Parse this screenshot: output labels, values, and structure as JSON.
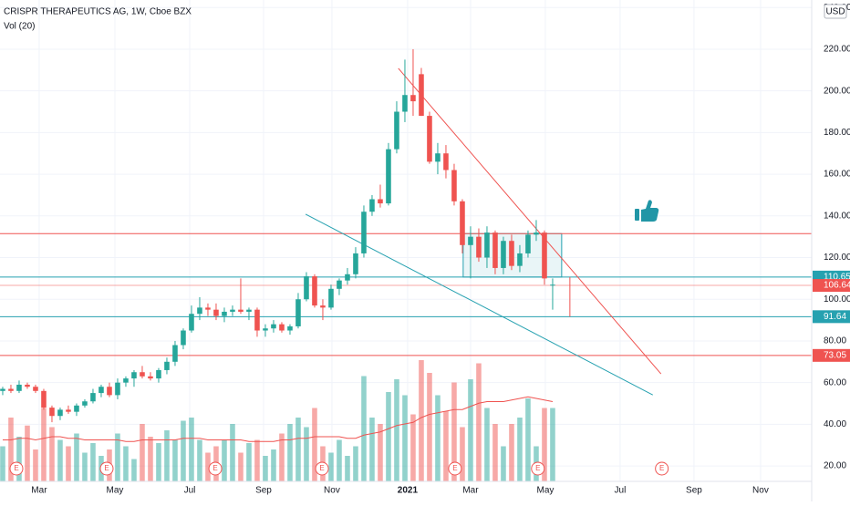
{
  "chart_data": {
    "type": "candlestick",
    "title": "CRISPR THERAPEUTICS AG, 1W, Cboe BZX",
    "subtitle": "Vol (20)",
    "currency": "USD",
    "categories": [
      null,
      null,
      null,
      null,
      null,
      null,
      null,
      null,
      null,
      null,
      null,
      null,
      null,
      null,
      null,
      null,
      null,
      null,
      null,
      null,
      null,
      null,
      null,
      null,
      null,
      null,
      null,
      null,
      null,
      null,
      null,
      null,
      null,
      null,
      null,
      null,
      null,
      null,
      null,
      null,
      null,
      null,
      null,
      null,
      null,
      null,
      null,
      null,
      null,
      null,
      null,
      null,
      null,
      null,
      null,
      null,
      null,
      null,
      null,
      null,
      null,
      null,
      null,
      null,
      null,
      null,
      null,
      null
    ],
    "open": [
      56,
      57,
      56,
      59,
      58,
      56,
      48,
      44,
      47,
      46,
      49,
      51,
      55,
      58,
      54,
      60,
      62,
      65,
      63,
      62,
      66,
      70,
      78,
      85,
      93,
      96,
      95,
      92,
      94,
      95,
      94,
      95,
      85,
      86,
      88,
      85,
      87,
      100,
      111,
      97,
      96,
      105,
      109,
      112,
      122,
      142,
      148,
      146,
      172,
      190,
      198,
      208,
      188,
      166,
      170,
      162,
      147,
      126,
      130,
      120,
      132,
      115,
      128,
      116,
      122,
      131,
      132,
      107
    ],
    "high": [
      58,
      59,
      61,
      60,
      59,
      57,
      49,
      48,
      49,
      50,
      52,
      57,
      59,
      60,
      62,
      63,
      66,
      68,
      65,
      67,
      72,
      80,
      86,
      97,
      101,
      98,
      98,
      96,
      97,
      110,
      96,
      96,
      88,
      90,
      89,
      88,
      103,
      113,
      112,
      100,
      107,
      110,
      115,
      125,
      145,
      150,
      155,
      175,
      195,
      215,
      220,
      211,
      190,
      175,
      174,
      165,
      148,
      135,
      134,
      135,
      133,
      130,
      131,
      126,
      133,
      138,
      133,
      110
    ],
    "low": [
      54,
      55,
      55,
      57,
      55,
      47,
      41,
      42,
      45,
      44,
      48,
      50,
      53,
      53,
      52,
      58,
      58,
      62,
      61,
      60,
      64,
      68,
      76,
      84,
      90,
      92,
      90,
      89,
      92,
      93,
      90,
      82,
      82,
      84,
      84,
      83,
      86,
      99,
      96,
      90,
      95,
      102,
      107,
      110,
      120,
      140,
      144,
      145,
      170,
      185,
      188,
      188,
      165,
      160,
      158,
      145,
      122,
      110,
      118,
      115,
      112,
      112,
      114,
      113,
      120,
      128,
      107,
      95
    ],
    "close": [
      57,
      56,
      59,
      58,
      56,
      48,
      44,
      47,
      46,
      49,
      51,
      55,
      58,
      54,
      60,
      62,
      65,
      63,
      62,
      66,
      70,
      78,
      85,
      93,
      96,
      95,
      92,
      94,
      95,
      94,
      95,
      85,
      86,
      88,
      85,
      87,
      100,
      111,
      97,
      96,
      105,
      109,
      112,
      122,
      142,
      148,
      146,
      172,
      190,
      198,
      195,
      188,
      166,
      170,
      162,
      147,
      126,
      130,
      120,
      132,
      115,
      128,
      116,
      122,
      131,
      132,
      110,
      107
    ],
    "volume": [
      2.2,
      4.0,
      2.8,
      3.5,
      2.0,
      4.6,
      3.4,
      2.6,
      2.2,
      3.0,
      1.8,
      2.4,
      1.6,
      2.0,
      3.0,
      2.2,
      1.4,
      3.6,
      2.8,
      2.4,
      3.2,
      2.6,
      3.8,
      4.0,
      2.6,
      1.8,
      2.2,
      2.6,
      3.6,
      1.8,
      2.4,
      2.6,
      1.6,
      2.0,
      3.0,
      3.6,
      4.0,
      3.4,
      4.6,
      2.2,
      1.8,
      2.6,
      1.6,
      2.2,
      6.6,
      4.0,
      3.6,
      5.6,
      6.4,
      5.4,
      4.2,
      7.6,
      6.8,
      5.4,
      4.4,
      6.2,
      3.4,
      6.4,
      7.4,
      4.6,
      3.6,
      2.2,
      3.6,
      4.0,
      5.2,
      2.2,
      4.6,
      4.6
    ],
    "volume_ma": [
      2.6,
      2.6,
      2.7,
      2.7,
      2.6,
      2.7,
      2.8,
      2.8,
      2.7,
      2.7,
      2.6,
      2.6,
      2.6,
      2.6,
      2.6,
      2.5,
      2.5,
      2.6,
      2.6,
      2.6,
      2.6,
      2.6,
      2.7,
      2.7,
      2.7,
      2.6,
      2.6,
      2.6,
      2.6,
      2.6,
      2.5,
      2.5,
      2.5,
      2.5,
      2.6,
      2.6,
      2.7,
      2.7,
      2.8,
      2.8,
      2.8,
      2.8,
      2.7,
      2.7,
      2.9,
      3.0,
      3.1,
      3.3,
      3.5,
      3.6,
      3.7,
      4.0,
      4.2,
      4.3,
      4.4,
      4.5,
      4.5,
      4.7,
      4.9,
      5.0,
      5.0,
      5.0,
      5.1,
      5.2,
      5.3,
      5.2,
      5.1,
      5.0
    ],
    "up_color": "#26a69a",
    "down_color": "#ef5350",
    "ma_color": "#ef5350",
    "ylim": [
      12.6,
      243.6
    ],
    "vlim": [
      0,
      10
    ],
    "xlim": [
      -0.33,
      98.56
    ],
    "yticks": [
      {
        "value": 20,
        "label": "20.00"
      },
      {
        "value": 40,
        "label": "40.00"
      },
      {
        "value": 60,
        "label": "60.00"
      },
      {
        "value": 80,
        "label": "80.00"
      },
      {
        "value": 100,
        "label": "100.00"
      },
      {
        "value": 120,
        "label": "120.00"
      },
      {
        "value": 140,
        "label": "140.00"
      },
      {
        "value": 160,
        "label": "160.00"
      },
      {
        "value": 180,
        "label": "180.00"
      },
      {
        "value": 200,
        "label": "200.00"
      },
      {
        "value": 220,
        "label": "220.00"
      },
      {
        "value": 240,
        "label": "240.00"
      }
    ],
    "xticks": [
      {
        "value": 4.44,
        "label": "Mar"
      },
      {
        "value": 13.67,
        "label": "May"
      },
      {
        "value": 22.78,
        "label": "Jul"
      },
      {
        "value": 31.78,
        "label": "Sep"
      },
      {
        "value": 40.11,
        "label": "Nov"
      },
      {
        "value": 49.33,
        "label": "2021"
      },
      {
        "value": 57.0,
        "label": "Mar"
      },
      {
        "value": 66.11,
        "label": "May"
      },
      {
        "value": 75.22,
        "label": "Jul"
      },
      {
        "value": 84.22,
        "label": "Sep"
      },
      {
        "value": 92.33,
        "label": "Nov"
      }
    ],
    "grid": true,
    "levels": [
      {
        "value": 131.5,
        "color": "#ef5350"
      },
      {
        "value": 110.65,
        "label": "110.65",
        "color": "#26a1b0"
      },
      {
        "value": 106.64,
        "label": "106.64",
        "color": "#ef5350"
      },
      {
        "value": 91.64,
        "label": "91.64",
        "color": "#26a1b0"
      },
      {
        "value": 73.05,
        "label": "73.05",
        "color": "#ef5350"
      }
    ],
    "trendlines": [
      {
        "color": "#ef5350",
        "from": [
          48.2,
          210.8
        ],
        "to": [
          80.2,
          64.2
        ]
      },
      {
        "color": "#26a1b0",
        "from": [
          36.9,
          140.8
        ],
        "to": [
          79.2,
          54.1
        ]
      }
    ],
    "box": {
      "x": [
        56.1,
        68.1
      ],
      "y": [
        110.65,
        131.5
      ],
      "color": "#26a1b0"
    },
    "vline": {
      "x": 69.1,
      "y": [
        91.64,
        110.65
      ],
      "color": "#ef5350"
    },
    "events": [
      {
        "value": 1.67,
        "label": "E"
      },
      {
        "value": 12.67,
        "label": "E"
      },
      {
        "value": 25.9,
        "label": "E"
      },
      {
        "value": 38.9,
        "label": "E"
      },
      {
        "value": 55.1,
        "label": "E"
      },
      {
        "value": 65.2,
        "label": "E"
      },
      {
        "value": 80.3,
        "label": "E"
      }
    ]
  }
}
